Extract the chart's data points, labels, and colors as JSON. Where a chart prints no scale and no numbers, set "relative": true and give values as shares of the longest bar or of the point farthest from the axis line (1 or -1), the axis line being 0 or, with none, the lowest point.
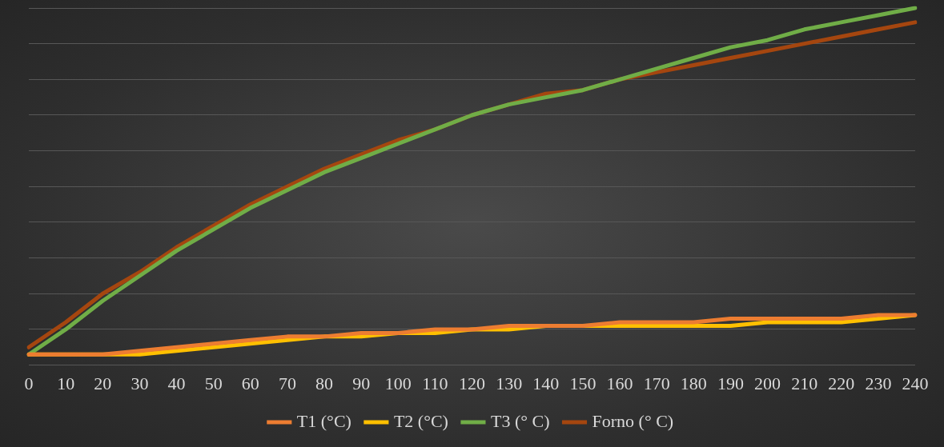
{
  "chart_data": {
    "type": "line",
    "relative": true,
    "categories": [
      "0",
      "10",
      "20",
      "30",
      "40",
      "50",
      "60",
      "70",
      "80",
      "90",
      "100",
      "110",
      "120",
      "130",
      "140",
      "150",
      "160",
      "170",
      "180",
      "190",
      "200",
      "210",
      "220",
      "230",
      "240"
    ],
    "series": [
      {
        "name": "T1 (°C)",
        "color": "#ed7d31",
        "values": [
          0.03,
          0.03,
          0.03,
          0.04,
          0.05,
          0.06,
          0.07,
          0.08,
          0.08,
          0.09,
          0.09,
          0.1,
          0.1,
          0.11,
          0.11,
          0.11,
          0.12,
          0.12,
          0.12,
          0.13,
          0.13,
          0.13,
          0.13,
          0.14,
          0.14
        ]
      },
      {
        "name": "T2 (°C)",
        "color": "#ffc000",
        "values": [
          0.03,
          0.03,
          0.03,
          0.03,
          0.04,
          0.05,
          0.06,
          0.07,
          0.08,
          0.08,
          0.09,
          0.09,
          0.1,
          0.1,
          0.11,
          0.11,
          0.11,
          0.11,
          0.11,
          0.11,
          0.12,
          0.12,
          0.12,
          0.13,
          0.14
        ]
      },
      {
        "name": "T3 (° C)",
        "color": "#70ad47",
        "values": [
          0.03,
          0.1,
          0.18,
          0.25,
          0.32,
          0.38,
          0.44,
          0.49,
          0.54,
          0.58,
          0.62,
          0.66,
          0.7,
          0.73,
          0.75,
          0.77,
          0.8,
          0.83,
          0.86,
          0.89,
          0.91,
          0.94,
          0.96,
          0.98,
          1
        ]
      },
      {
        "name": "Forno (° C)",
        "color": "#a5460f",
        "values": [
          0.05,
          0.12,
          0.2,
          0.26,
          0.33,
          0.39,
          0.45,
          0.5,
          0.55,
          0.59,
          0.63,
          0.66,
          0.7,
          0.73,
          0.76,
          0.77,
          0.8,
          0.82,
          0.84,
          0.86,
          0.88,
          0.9,
          0.92,
          0.94,
          0.96
        ]
      }
    ],
    "grid": "y",
    "legend": "bottom",
    "marker": "none",
    "line_style": "solid"
  }
}
